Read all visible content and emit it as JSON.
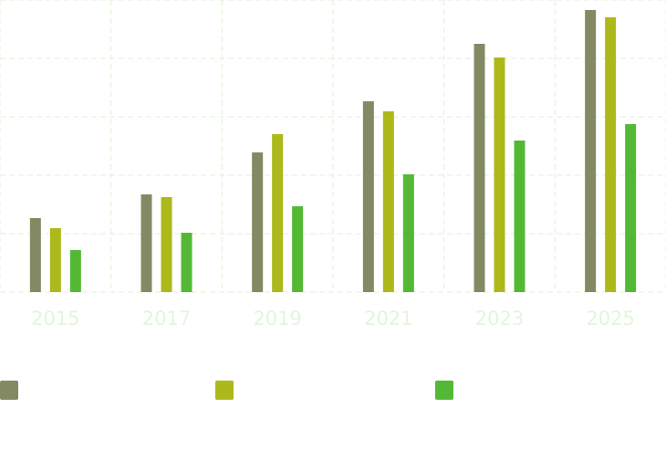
{
  "chart_data": {
    "type": "bar",
    "categories": [
      "2015",
      "2017",
      "2019",
      "2021",
      "2023",
      "2025"
    ],
    "series": [
      {
        "color": "#838a63",
        "values": [
          81,
          107,
          153,
          209,
          272,
          309
        ]
      },
      {
        "color": "#adb81b",
        "values": [
          70,
          104,
          173,
          198,
          257,
          301
        ]
      },
      {
        "color": "#53b935",
        "values": [
          46,
          65,
          94,
          129,
          166,
          184
        ]
      }
    ],
    "ylim": [
      0,
      320
    ],
    "grid": true,
    "legend_placement": "bottom",
    "title": "",
    "xlabel": "",
    "ylabel": ""
  },
  "colors": {
    "grid": "#ddf3d6",
    "tick_label": "#e2f5dd"
  }
}
